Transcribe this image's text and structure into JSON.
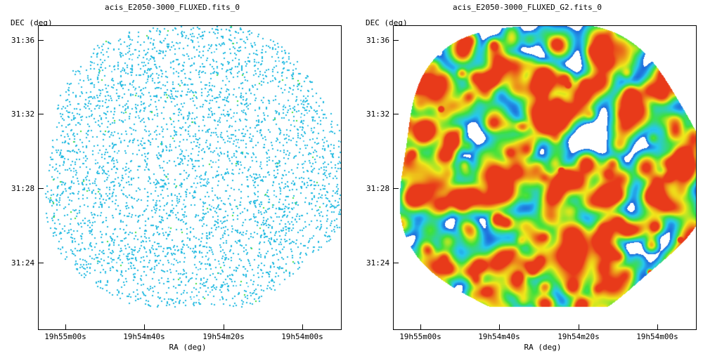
{
  "left_panel": {
    "title": "acis_E2050-3000_FLUXED.fits_0",
    "y_axis_label": "DEC (deg)",
    "x_axis_label": "RA (deg)",
    "y_ticks": [
      "31:36",
      "31:32",
      "31:28",
      "31:24"
    ],
    "x_ticks": [
      "19h55m00s",
      "19h54m40s",
      "19h54m20s",
      "19h54m00s"
    ]
  },
  "right_panel": {
    "title": "acis_E2050-3000_FLUXED_G2.fits_0",
    "y_axis_label": "DEC (deg)",
    "x_axis_label": "RA (deg)",
    "y_ticks": [
      "31:36",
      "31:32",
      "31:28",
      "31:24"
    ],
    "x_ticks": [
      "19h55m00s",
      "19h54m40s",
      "19h54m20s",
      "19h54m00s"
    ]
  },
  "colors": {
    "sparse_pixel": "#1ab8e0",
    "low": "#1a2acc",
    "mid": "#27c7f0",
    "high": "#3ee03e",
    "peak": "#f0e81a",
    "hot": "#e83a1a"
  }
}
